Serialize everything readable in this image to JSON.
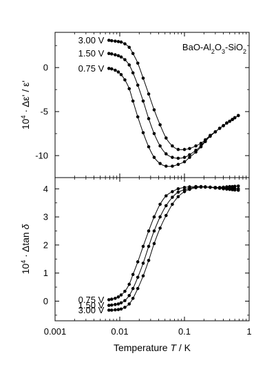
{
  "chart_data": [
    {
      "type": "line",
      "xscale": "log",
      "xlim": [
        0.001,
        1
      ],
      "ylim": [
        -12.5,
        4
      ],
      "yticks": [
        0,
        -5,
        -10
      ],
      "ylabel_base": "10",
      "ylabel_exp": "4",
      "ylabel_rest": " · Δε' / ε'",
      "inset_label": {
        "prefix": "BaO-Al",
        "s1": "2",
        "mid": "O",
        "s2": "3",
        "mid2": "-SiO",
        "s3": "2"
      },
      "series": [
        {
          "name": "3.00 V",
          "x": [
            0.0068,
            0.0075,
            0.0085,
            0.0095,
            0.0105,
            0.012,
            0.014,
            0.016,
            0.019,
            0.023,
            0.028,
            0.034,
            0.042,
            0.052,
            0.065,
            0.08,
            0.1,
            0.12,
            0.15,
            0.18,
            0.21,
            0.25,
            0.3,
            0.35,
            0.4,
            0.45,
            0.5,
            0.55,
            0.6,
            0.68
          ],
          "y": [
            3.1,
            3.05,
            3.0,
            2.95,
            2.9,
            2.7,
            2.3,
            1.6,
            0.5,
            -1.2,
            -3.0,
            -4.8,
            -6.5,
            -8.0,
            -8.9,
            -9.3,
            -9.3,
            -9.2,
            -8.9,
            -8.6,
            -8.2,
            -7.7,
            -7.3,
            -6.9,
            -6.6,
            -6.3,
            -6.1,
            -5.9,
            -5.7,
            -5.45
          ]
        },
        {
          "name": "1.50 V",
          "x": [
            0.0068,
            0.0075,
            0.0085,
            0.0095,
            0.0105,
            0.012,
            0.014,
            0.016,
            0.019,
            0.023,
            0.028,
            0.034,
            0.042,
            0.052,
            0.065,
            0.08,
            0.1,
            0.12,
            0.15,
            0.18,
            0.21,
            0.25,
            0.3,
            0.35,
            0.4,
            0.45,
            0.5,
            0.55,
            0.6,
            0.68
          ],
          "y": [
            1.6,
            1.55,
            1.45,
            1.35,
            1.2,
            0.9,
            0.3,
            -0.6,
            -2.0,
            -3.8,
            -5.8,
            -7.5,
            -8.9,
            -9.8,
            -10.2,
            -10.3,
            -10.2,
            -9.9,
            -9.4,
            -8.9,
            -8.3,
            -7.8,
            -7.3,
            -6.9,
            -6.6,
            -6.3,
            -6.1,
            -5.9,
            -5.7,
            -5.45
          ]
        },
        {
          "name": "0.75 V",
          "x": [
            0.0068,
            0.0075,
            0.0085,
            0.0095,
            0.0105,
            0.012,
            0.014,
            0.016,
            0.019,
            0.023,
            0.028,
            0.034,
            0.042,
            0.052,
            0.065,
            0.08,
            0.1,
            0.12,
            0.15,
            0.18,
            0.21,
            0.25,
            0.3,
            0.35,
            0.4,
            0.45,
            0.5,
            0.55,
            0.6,
            0.68
          ],
          "y": [
            -0.1,
            -0.15,
            -0.3,
            -0.5,
            -0.8,
            -1.4,
            -2.4,
            -3.8,
            -5.6,
            -7.4,
            -9.0,
            -10.2,
            -10.9,
            -11.2,
            -11.2,
            -11.0,
            -10.7,
            -10.2,
            -9.6,
            -9.0,
            -8.4,
            -7.8,
            -7.3,
            -6.9,
            -6.6,
            -6.3,
            -6.1,
            -5.9,
            -5.7,
            -5.45
          ]
        }
      ]
    },
    {
      "type": "line",
      "xscale": "log",
      "xlim": [
        0.001,
        1
      ],
      "ylim": [
        -0.7,
        4.4
      ],
      "yticks": [
        0,
        1,
        2,
        3,
        4
      ],
      "xticks": [
        "0.001",
        "0.01",
        "0.1",
        "1"
      ],
      "xlabel_prefix": "Temperature ",
      "xlabel_var": "T",
      "xlabel_suffix": " / K",
      "ylabel_base": "10",
      "ylabel_exp": "4",
      "ylabel_rest": " · Δtan ",
      "ylabel_greek": "δ",
      "series": [
        {
          "name": "0.75 V",
          "x": [
            0.0068,
            0.0075,
            0.0085,
            0.0095,
            0.0105,
            0.012,
            0.014,
            0.016,
            0.019,
            0.023,
            0.028,
            0.034,
            0.042,
            0.052,
            0.065,
            0.08,
            0.1,
            0.12,
            0.15,
            0.18,
            0.21,
            0.25,
            0.3,
            0.35,
            0.4,
            0.45,
            0.5,
            0.55,
            0.6,
            0.68
          ],
          "y": [
            0.05,
            0.07,
            0.1,
            0.15,
            0.22,
            0.35,
            0.6,
            0.95,
            1.4,
            1.95,
            2.5,
            3.0,
            3.45,
            3.75,
            3.9,
            4.0,
            4.05,
            4.07,
            4.08,
            4.08,
            4.07,
            4.06,
            4.05,
            4.05,
            4.06,
            4.07,
            4.08,
            4.08,
            4.09,
            4.1
          ]
        },
        {
          "name": "1.50 V",
          "x": [
            0.0068,
            0.0075,
            0.0085,
            0.0095,
            0.0105,
            0.012,
            0.014,
            0.016,
            0.019,
            0.023,
            0.028,
            0.034,
            0.042,
            0.052,
            0.065,
            0.08,
            0.1,
            0.12,
            0.15,
            0.18,
            0.21,
            0.25,
            0.3,
            0.35,
            0.4,
            0.45,
            0.5,
            0.55,
            0.6,
            0.68
          ],
          "y": [
            -0.15,
            -0.14,
            -0.12,
            -0.1,
            -0.06,
            0.02,
            0.2,
            0.45,
            0.85,
            1.35,
            1.95,
            2.5,
            3.0,
            3.4,
            3.7,
            3.88,
            3.97,
            4.02,
            4.06,
            4.07,
            4.07,
            4.06,
            4.05,
            4.04,
            4.03,
            4.02,
            4.02,
            4.01,
            4.01,
            4.0
          ]
        },
        {
          "name": "3.00 V",
          "x": [
            0.0068,
            0.0075,
            0.0085,
            0.0095,
            0.0105,
            0.012,
            0.014,
            0.016,
            0.019,
            0.023,
            0.028,
            0.034,
            0.042,
            0.052,
            0.065,
            0.08,
            0.1,
            0.12,
            0.15,
            0.18,
            0.21,
            0.25,
            0.3,
            0.35,
            0.4,
            0.45,
            0.5,
            0.55,
            0.6,
            0.68
          ],
          "y": [
            -0.32,
            -0.32,
            -0.31,
            -0.3,
            -0.28,
            -0.22,
            -0.1,
            0.1,
            0.45,
            0.9,
            1.45,
            2.05,
            2.6,
            3.05,
            3.45,
            3.72,
            3.9,
            3.98,
            4.04,
            4.06,
            4.06,
            4.05,
            4.03,
            4.02,
            4.0,
            3.99,
            3.98,
            3.97,
            3.96,
            3.95
          ]
        }
      ]
    }
  ]
}
